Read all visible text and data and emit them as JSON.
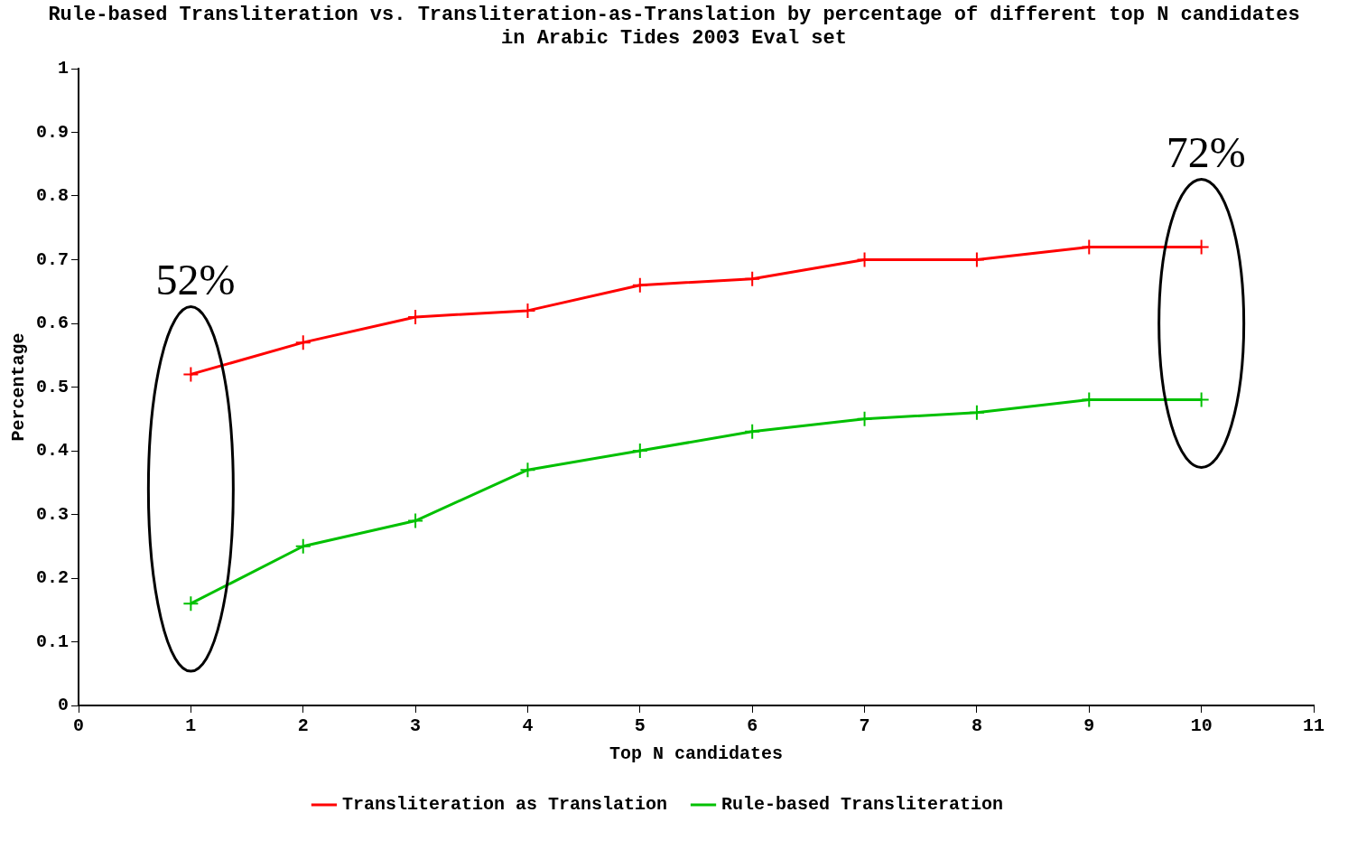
{
  "chart_data": {
    "type": "line",
    "title": "Rule-based Transliteration vs. Transliteration-as-Translation by percentage of different top N candidates in Arabic Tides 2003 Eval set",
    "xlabel": "Top N candidates",
    "ylabel": "Percentage",
    "x": [
      1,
      2,
      3,
      4,
      5,
      6,
      7,
      8,
      9,
      10
    ],
    "series": [
      {
        "name": "Transliteration as Translation",
        "color": "#ff0000",
        "values": [
          0.52,
          0.57,
          0.61,
          0.62,
          0.66,
          0.67,
          0.7,
          0.7,
          0.72,
          0.72
        ]
      },
      {
        "name": "Rule-based Transliteration",
        "color": "#00c000",
        "values": [
          0.16,
          0.25,
          0.29,
          0.37,
          0.4,
          0.43,
          0.45,
          0.46,
          0.48,
          0.48
        ]
      }
    ],
    "xlim": [
      0,
      11
    ],
    "xticks": [
      0,
      1,
      2,
      3,
      4,
      5,
      6,
      7,
      8,
      9,
      10,
      11
    ],
    "ylim": [
      0,
      1
    ],
    "yticks": [
      0,
      0.1,
      0.2,
      0.3,
      0.4,
      0.5,
      0.6,
      0.7,
      0.8,
      0.9,
      1
    ],
    "annotations": [
      {
        "text": "52%",
        "x": 1,
        "y": 0.52
      },
      {
        "text": "72%",
        "x": 10,
        "y": 0.72
      }
    ],
    "grid": false,
    "legend": "bottom",
    "marker": "cross",
    "line_style": "solid"
  }
}
